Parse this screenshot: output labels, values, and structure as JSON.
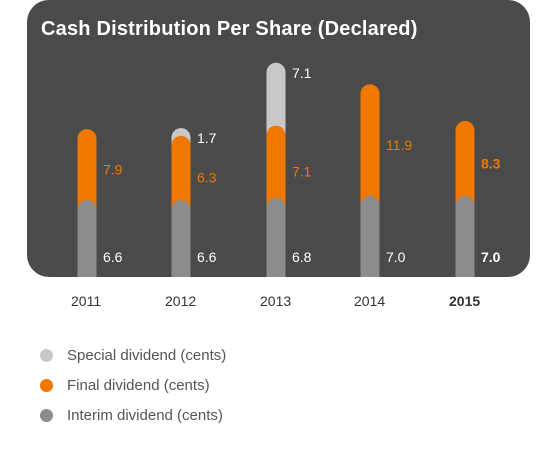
{
  "chart_data": {
    "type": "bar",
    "stacked": true,
    "title": "Cash Distribution Per Share (Declared)",
    "categories": [
      "2011",
      "2012",
      "2013",
      "2014",
      "2015"
    ],
    "highlight_category": "2015",
    "series": [
      {
        "name": "Interim dividend (cents)",
        "values": [
          6.6,
          6.6,
          6.8,
          7.0,
          7.0
        ],
        "labels": [
          "6.6",
          "6.6",
          "6.8",
          "7.0",
          "7.0"
        ],
        "color": "#8c8c8c",
        "label_color": "#ffffff"
      },
      {
        "name": "Final dividend (cents)",
        "values": [
          7.9,
          6.3,
          7.1,
          11.9,
          8.3
        ],
        "labels": [
          "7.9",
          "6.3",
          "7.1",
          "11.9",
          "8.3"
        ],
        "color": "#f07800",
        "label_color": "#f07800"
      },
      {
        "name": "Special dividend (cents)",
        "values": [
          0,
          1.7,
          7.1,
          0,
          0
        ],
        "labels": [
          "",
          "1.7",
          "7.1",
          "",
          ""
        ],
        "color": "#c8c8c8",
        "label_color": "#ffffff"
      }
    ],
    "legend_order": [
      2,
      1,
      0
    ],
    "legend_position": "bottom-left",
    "grid": false,
    "colors": {
      "panel": "#4a4a4a",
      "axis_text": "#333333",
      "legend_text": "#555555"
    }
  }
}
